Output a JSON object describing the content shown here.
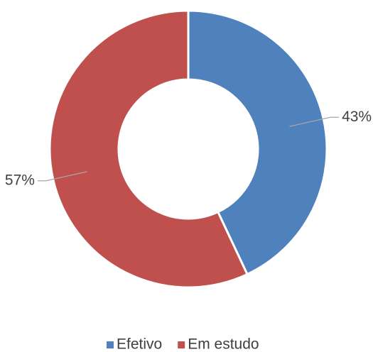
{
  "chart_data": {
    "type": "donut",
    "categories": [
      "Efetivo",
      "Em estudo"
    ],
    "values": [
      43,
      57
    ],
    "value_labels": [
      "43%",
      "57%"
    ],
    "colors": [
      "#4f81bd",
      "#c0504d"
    ],
    "legend": "bottom"
  }
}
